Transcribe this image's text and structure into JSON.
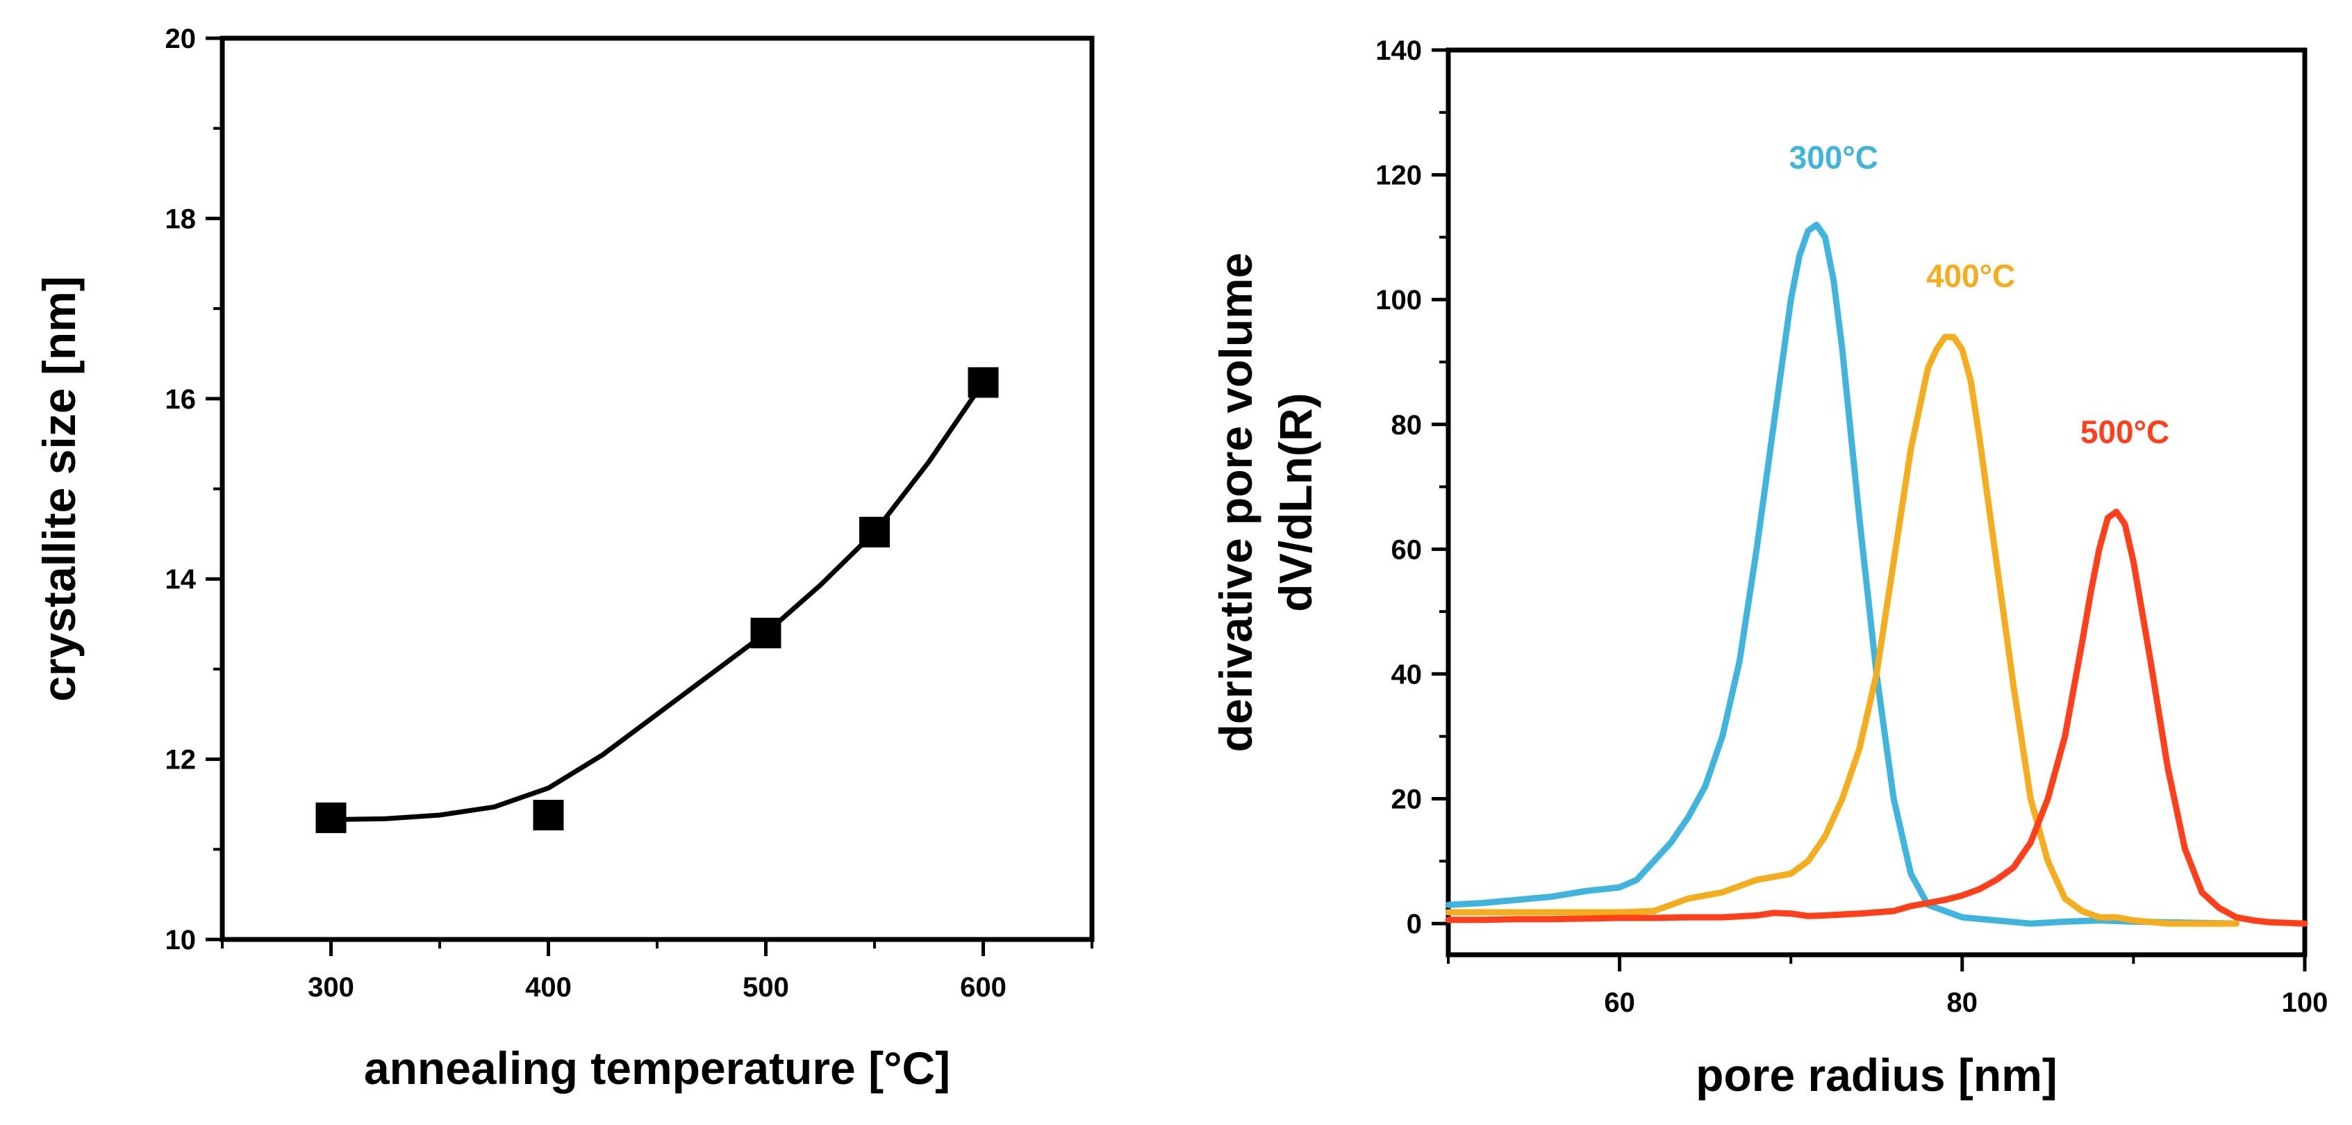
{
  "colors": {
    "axis": "#000000",
    "background": "#ffffff",
    "fit_line": "#000000",
    "marker": "#000000"
  },
  "chart_data": [
    {
      "type": "scatter",
      "title": "",
      "xlabel": "annealing temperature [°C]",
      "ylabel": "crystallite size [nm]",
      "xlim": [
        250,
        650
      ],
      "ylim": [
        10,
        20
      ],
      "xticks": [
        300,
        400,
        500,
        600
      ],
      "xtick_labels": [
        "300",
        "400",
        "500",
        "600"
      ],
      "yticks": [
        10,
        12,
        14,
        16,
        18,
        20
      ],
      "ytick_labels": [
        "10",
        "12",
        "14",
        "16",
        "18",
        "20"
      ],
      "points": [
        {
          "x": 300,
          "y": 11.35
        },
        {
          "x": 400,
          "y": 11.38
        },
        {
          "x": 500,
          "y": 13.4
        },
        {
          "x": 550,
          "y": 14.52
        },
        {
          "x": 600,
          "y": 16.18
        }
      ],
      "fit": {
        "type": "polynomial",
        "x": [
          300,
          325,
          350,
          375,
          400,
          425,
          450,
          475,
          500,
          525,
          550,
          575,
          600
        ],
        "y": [
          11.33,
          11.34,
          11.38,
          11.47,
          11.68,
          12.05,
          12.5,
          12.95,
          13.4,
          13.93,
          14.52,
          15.3,
          16.18
        ]
      },
      "legend": "none"
    },
    {
      "type": "line",
      "title": "",
      "xlabel": "pore radius [nm]",
      "ylabel_lines": [
        "derivative pore volume",
        "dV/dLn(R)"
      ],
      "xlim": [
        50,
        100
      ],
      "ylim": [
        -5,
        140
      ],
      "xticks": [
        60,
        80,
        100
      ],
      "xtick_labels": [
        "60",
        "80",
        "100"
      ],
      "yticks": [
        0,
        20,
        40,
        60,
        80,
        100,
        120,
        140
      ],
      "ytick_labels": [
        "0",
        "20",
        "40",
        "60",
        "80",
        "100",
        "120",
        "140"
      ],
      "series": [
        {
          "name": "300°C",
          "color": "#3FB4DC",
          "label_anchor": {
            "x": 72.5,
            "y": 121
          },
          "x": [
            50,
            52,
            54,
            56,
            58,
            60,
            61,
            62,
            63,
            64,
            65,
            66,
            67,
            68,
            69,
            70,
            70.5,
            71,
            71.5,
            72,
            72.5,
            73,
            74,
            75,
            76,
            77,
            78,
            80,
            82,
            84,
            86,
            88,
            90,
            92,
            94,
            96
          ],
          "y": [
            3,
            3.3,
            3.8,
            4.3,
            5.2,
            5.8,
            7,
            10,
            13,
            17,
            22,
            30,
            42,
            60,
            80,
            100,
            107,
            111,
            112,
            110,
            103,
            92,
            65,
            40,
            20,
            8,
            3,
            1,
            0.5,
            0,
            0.3,
            0.5,
            0.3,
            0.2,
            0.1,
            0
          ]
        },
        {
          "name": "400°C",
          "color": "#F5AD1D",
          "label_anchor": {
            "x": 80.5,
            "y": 102
          },
          "x": [
            50,
            52,
            54,
            56,
            58,
            60,
            62,
            63,
            64,
            65,
            66,
            67,
            68,
            69,
            70,
            71,
            72,
            73,
            74,
            75,
            76,
            77,
            78,
            78.5,
            79,
            79.5,
            80,
            80.5,
            81,
            82,
            83,
            84,
            85,
            86,
            87,
            88,
            89,
            90,
            92,
            94,
            96
          ],
          "y": [
            1.8,
            1.8,
            1.8,
            1.8,
            1.8,
            1.8,
            2,
            3,
            4,
            4.5,
            5,
            6,
            7,
            7.5,
            8,
            10,
            14,
            20,
            28,
            40,
            58,
            76,
            89,
            92,
            94,
            94,
            92,
            87,
            78,
            58,
            38,
            20,
            10,
            4,
            2,
            1,
            1,
            0.5,
            0,
            0,
            0
          ]
        },
        {
          "name": "500°C",
          "color": "#FF3F1A",
          "label_anchor": {
            "x": 89.5,
            "y": 77
          },
          "x": [
            50,
            52,
            54,
            56,
            58,
            60,
            62,
            64,
            66,
            68,
            69,
            70,
            71,
            72,
            74,
            76,
            77,
            78,
            79,
            80,
            81,
            82,
            83,
            84,
            85,
            86,
            87,
            87.5,
            88,
            88.5,
            89,
            89.5,
            90,
            91,
            92,
            93,
            94,
            95,
            96,
            97,
            98,
            100
          ],
          "y": [
            0.6,
            0.6,
            0.7,
            0.7,
            0.8,
            0.9,
            0.9,
            1,
            1,
            1.3,
            1.7,
            1.6,
            1.2,
            1.3,
            1.6,
            2,
            2.8,
            3.3,
            3.8,
            4.5,
            5.5,
            7,
            9,
            13,
            20,
            30,
            45,
            53,
            60,
            65,
            66,
            64,
            58,
            42,
            25,
            12,
            5,
            2.5,
            1,
            0.5,
            0.2,
            0
          ]
        }
      ],
      "legend": "inline labels above peaks"
    }
  ]
}
